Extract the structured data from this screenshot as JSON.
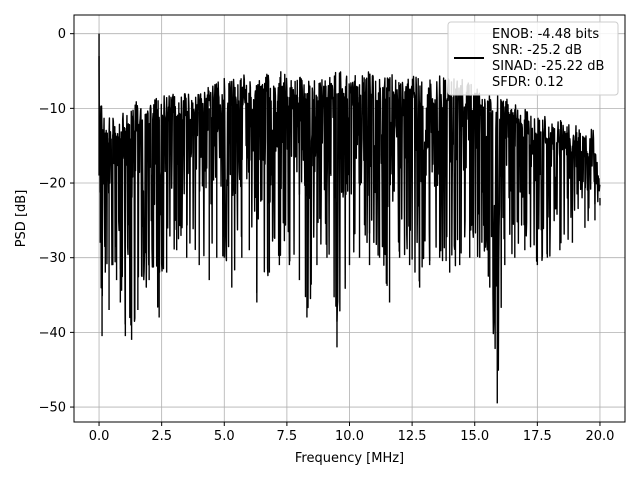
{
  "chart_data": {
    "type": "line",
    "title": "",
    "xlabel": "Frequency [MHz]",
    "ylabel": "PSD [dB]",
    "xlim": [
      -1.0,
      21.0
    ],
    "ylim": [
      -52.0,
      2.5
    ],
    "xticks": [
      0.0,
      2.5,
      5.0,
      7.5,
      10.0,
      12.5,
      15.0,
      17.5,
      20.0
    ],
    "xtick_labels": [
      "0.0",
      "2.5",
      "5.0",
      "7.5",
      "10.0",
      "12.5",
      "15.0",
      "17.5",
      "20.0"
    ],
    "yticks": [
      0,
      -10,
      -20,
      -30,
      -40,
      -50
    ],
    "ytick_labels": [
      "0",
      "−10",
      "−20",
      "−30",
      "−40",
      "−50"
    ],
    "grid": true,
    "legend_position": "top-right",
    "legend_entries": [
      "ENOB: -4.48 bits",
      "SNR: -25.2 dB",
      "SINAD: -25.22 dB",
      "SFDR: 0.12"
    ],
    "series": [
      {
        "color": "#000000",
        "x": [
          0.0,
          0.05,
          0.12,
          0.25,
          0.4,
          0.55,
          0.7,
          0.85,
          1.05,
          1.3,
          1.55,
          2.0,
          2.4,
          2.7,
          3.1,
          3.5,
          4.0,
          4.4,
          4.7,
          5.0,
          5.3,
          5.7,
          6.0,
          6.3,
          6.8,
          7.2,
          7.6,
          8.0,
          8.3,
          8.7,
          9.1,
          9.5,
          10.0,
          10.4,
          10.8,
          11.2,
          11.6,
          12.0,
          12.4,
          12.8,
          13.2,
          13.6,
          14.0,
          14.4,
          14.8,
          15.2,
          15.6,
          15.9,
          16.2,
          16.6,
          17.0,
          17.5,
          17.9,
          18.4,
          18.9,
          19.4,
          19.8,
          20.0
        ],
        "y_low": [
          -19,
          -28,
          -40.5,
          -32,
          -37,
          -31,
          -33,
          -36,
          -40.5,
          -41,
          -37,
          -33,
          -38,
          -32,
          -29,
          -30,
          -31,
          -33,
          -30,
          -30,
          -34,
          -30,
          -29,
          -36,
          -32,
          -31,
          -31,
          -33,
          -38,
          -31,
          -30,
          -42,
          -31,
          -30,
          -31,
          -30,
          -36,
          -30,
          -31,
          -34,
          -31,
          -30,
          -32,
          -31,
          -30,
          -30,
          -34,
          -49.5,
          -31,
          -30,
          -29,
          -31,
          -30,
          -29,
          -28,
          -26,
          -25,
          -22
        ],
        "y_high": [
          0,
          -8.5,
          -10,
          -12,
          -11,
          -10.5,
          -12,
          -11,
          -10,
          -9.5,
          -9,
          -9,
          -8.5,
          -8,
          -8,
          -8,
          -7.5,
          -7,
          -6.5,
          -6,
          -6,
          -5.5,
          -5.5,
          -5,
          -5.5,
          -5,
          -5.5,
          -5.5,
          -5,
          -5.5,
          -5.5,
          -5,
          -5,
          -5.5,
          -5,
          -5.5,
          -5.5,
          -5,
          -5.5,
          -6,
          -6,
          -5.5,
          -5.5,
          -6,
          -6,
          -7,
          -7.5,
          -8,
          -8.5,
          -9,
          -10,
          -10.5,
          -11,
          -11.5,
          -12,
          -12.5,
          -13,
          -20
        ]
      }
    ]
  }
}
